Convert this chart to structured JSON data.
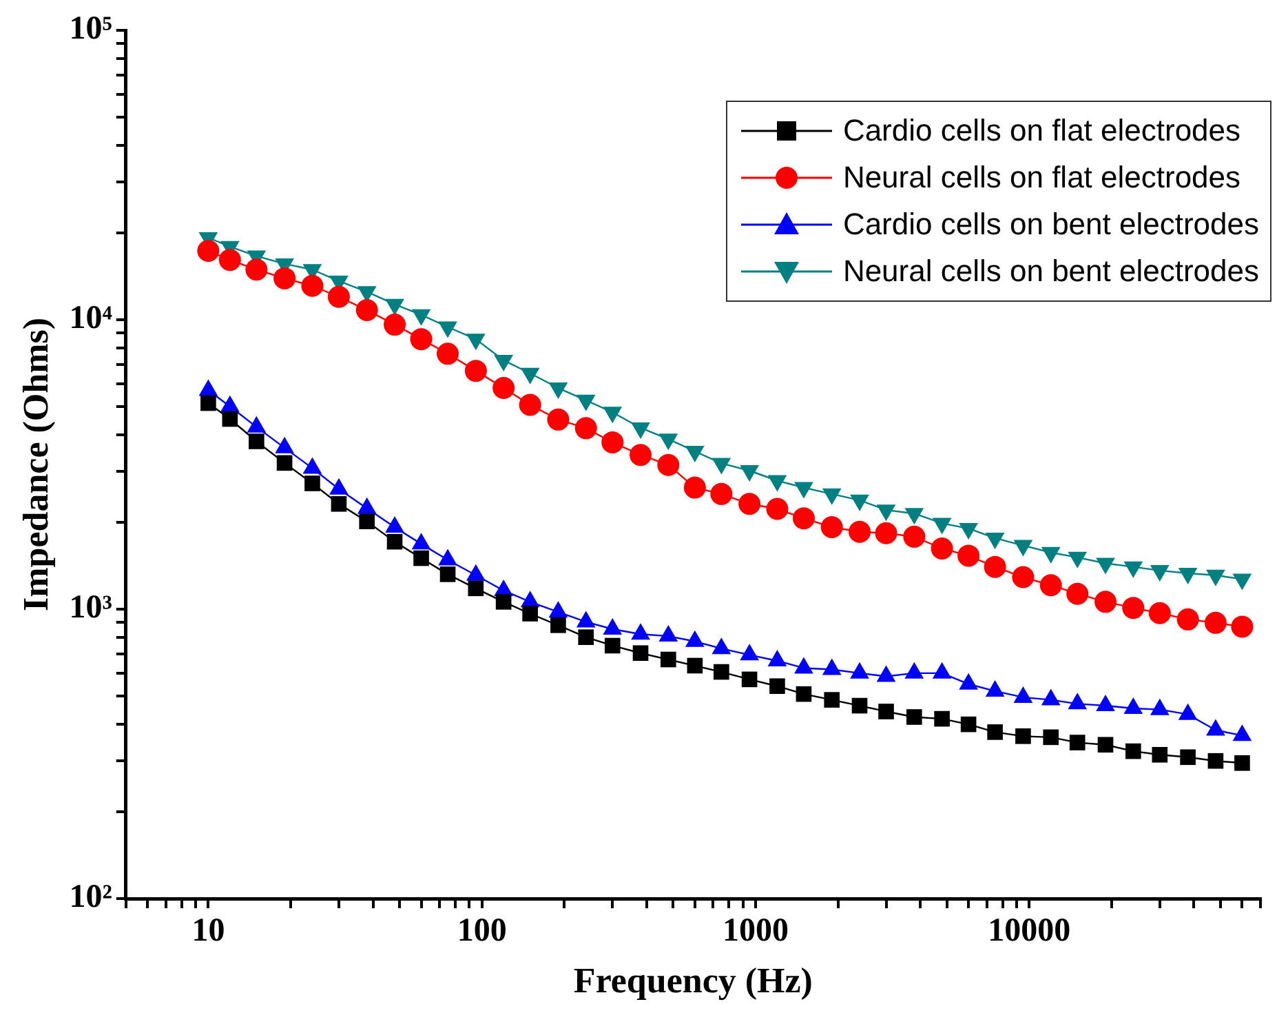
{
  "chart_data": {
    "type": "line",
    "xlabel": "Frequency (Hz)",
    "ylabel": "Impedance (Ohms)",
    "log": "xy",
    "legend": "top right",
    "line_style": "solid",
    "x": [
      10,
      12,
      15,
      19,
      24,
      30,
      38,
      48,
      60,
      75,
      95,
      120,
      150,
      190,
      240,
      300,
      380,
      480,
      600,
      750,
      950,
      1200,
      1500,
      1900,
      2400,
      3000,
      3800,
      4800,
      6000,
      7500,
      9500,
      12000,
      15000,
      19000,
      24000,
      30000,
      38000,
      48000,
      60000
    ],
    "xlim": [
      5,
      70000
    ],
    "xticks": [
      {
        "value": 5,
        "label": null
      },
      {
        "value": 6,
        "label": null
      },
      {
        "value": 7,
        "label": null
      },
      {
        "value": 8,
        "label": null
      },
      {
        "value": 9,
        "label": null
      },
      10,
      {
        "value": 20,
        "label": null
      },
      {
        "value": 30,
        "label": null
      },
      {
        "value": 40,
        "label": null
      },
      {
        "value": 50,
        "label": null
      },
      {
        "value": 60,
        "label": null
      },
      {
        "value": 70,
        "label": null
      },
      {
        "value": 80,
        "label": null
      },
      {
        "value": 90,
        "label": null
      },
      100,
      {
        "value": 200,
        "label": null
      },
      {
        "value": 300,
        "label": null
      },
      {
        "value": 400,
        "label": null
      },
      {
        "value": 500,
        "label": null
      },
      {
        "value": 600,
        "label": null
      },
      {
        "value": 700,
        "label": null
      },
      {
        "value": 800,
        "label": null
      },
      {
        "value": 900,
        "label": null
      },
      1000,
      {
        "value": 2000,
        "label": null
      },
      {
        "value": 3000,
        "label": null
      },
      {
        "value": 4000,
        "label": null
      },
      {
        "value": 5000,
        "label": null
      },
      {
        "value": 6000,
        "label": null
      },
      {
        "value": 7000,
        "label": null
      },
      {
        "value": 8000,
        "label": null
      },
      {
        "value": 9000,
        "label": null
      },
      10000,
      {
        "value": 20000,
        "label": null
      },
      {
        "value": 30000,
        "label": null
      },
      {
        "value": 40000,
        "label": null
      },
      {
        "value": 50000,
        "label": null
      },
      {
        "value": 60000,
        "label": null
      },
      {
        "value": 70000,
        "label": null
      }
    ],
    "ylim": [
      100,
      100000
    ],
    "yticks": [
      {
        "value": 100,
        "label": "10²"
      },
      {
        "value": 200,
        "label": null
      },
      {
        "value": 300,
        "label": null
      },
      {
        "value": 400,
        "label": null
      },
      {
        "value": 500,
        "label": null
      },
      {
        "value": 600,
        "label": null
      },
      {
        "value": 700,
        "label": null
      },
      {
        "value": 800,
        "label": null
      },
      {
        "value": 900,
        "label": null
      },
      {
        "value": 1000,
        "label": "10³"
      },
      {
        "value": 2000,
        "label": null
      },
      {
        "value": 3000,
        "label": null
      },
      {
        "value": 4000,
        "label": null
      },
      {
        "value": 5000,
        "label": null
      },
      {
        "value": 6000,
        "label": null
      },
      {
        "value": 7000,
        "label": null
      },
      {
        "value": 8000,
        "label": null
      },
      {
        "value": 9000,
        "label": null
      },
      {
        "value": 10000,
        "label": "10⁴"
      },
      {
        "value": 20000,
        "label": null
      },
      {
        "value": 30000,
        "label": null
      },
      {
        "value": 40000,
        "label": null
      },
      {
        "value": 50000,
        "label": null
      },
      {
        "value": 60000,
        "label": null
      },
      {
        "value": 70000,
        "label": null
      },
      {
        "value": 80000,
        "label": null
      },
      {
        "value": 90000,
        "label": null
      },
      {
        "value": 100000,
        "label": "10⁵"
      }
    ],
    "series": [
      {
        "name": "Cardio cells on flat electrodes",
        "color": "#000000",
        "marker": "square",
        "values": [
          5150,
          4540,
          3800,
          3200,
          2720,
          2310,
          2010,
          1710,
          1500,
          1320,
          1180,
          1060,
          965,
          880,
          800,
          748,
          705,
          670,
          638,
          607,
          572,
          542,
          509,
          486,
          464,
          443,
          424,
          418,
          400,
          376,
          364,
          361,
          346,
          340,
          323,
          314,
          308,
          299,
          294
        ]
      },
      {
        "name": "Neural cells on flat electrodes",
        "color": "#ff0000",
        "marker": "circle",
        "values": [
          17300,
          16100,
          14900,
          13900,
          13100,
          12000,
          10800,
          9620,
          8570,
          7630,
          6660,
          5810,
          5080,
          4520,
          4220,
          3770,
          3410,
          3150,
          2630,
          2500,
          2310,
          2220,
          2060,
          1920,
          1850,
          1830,
          1780,
          1620,
          1530,
          1400,
          1290,
          1210,
          1130,
          1060,
          1010,
          969,
          922,
          897,
          870
        ]
      },
      {
        "name": "Cardio cells on bent electrodes",
        "color": "#0000ff",
        "marker": "triangle",
        "values": [
          5700,
          5020,
          4260,
          3610,
          3070,
          2600,
          2230,
          1920,
          1680,
          1480,
          1310,
          1160,
          1060,
          977,
          904,
          853,
          820,
          807,
          774,
          731,
          695,
          663,
          626,
          619,
          601,
          586,
          601,
          601,
          551,
          521,
          496,
          486,
          471,
          464,
          454,
          450,
          433,
          382,
          366
        ]
      },
      {
        "name": "Neural cells on bent electrodes",
        "color": "#008080",
        "marker": "triangle-down",
        "values": [
          19200,
          17900,
          16600,
          15600,
          14900,
          13600,
          12500,
          11300,
          10400,
          9440,
          8570,
          7240,
          6530,
          5810,
          5270,
          4790,
          4230,
          3870,
          3510,
          3190,
          3010,
          2780,
          2630,
          2500,
          2380,
          2200,
          2140,
          1980,
          1900,
          1760,
          1660,
          1570,
          1510,
          1440,
          1400,
          1360,
          1330,
          1310,
          1270
        ]
      }
    ]
  }
}
